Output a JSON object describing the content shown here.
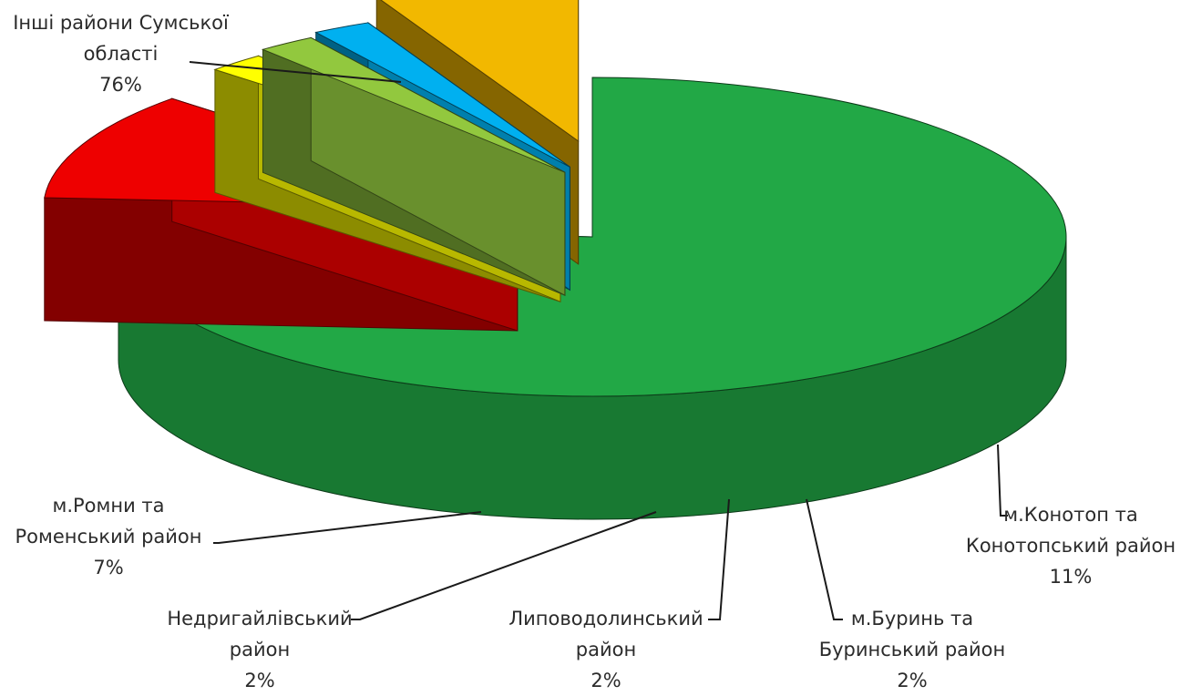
{
  "chart_data": {
    "type": "pie",
    "style": "3d-exploded",
    "slices": [
      {
        "label_lines": [
          "Інші райони Сумської",
          "області"
        ],
        "value_label": "76%",
        "value": 76,
        "color": "#22a846"
      },
      {
        "label_lines": [
          "м.Конотоп та",
          "Конотопський район"
        ],
        "value_label": "11%",
        "value": 11,
        "color": "#ee0000"
      },
      {
        "label_lines": [
          "м.Буринь та",
          "Буринський район"
        ],
        "value_label": "2%",
        "value": 2,
        "color": "#ffff00"
      },
      {
        "label_lines": [
          "Липоводолинський",
          "район"
        ],
        "value_label": "2%",
        "value": 2,
        "color": "#92c83e"
      },
      {
        "label_lines": [
          "Недригайлівський",
          "район"
        ],
        "value_label": "2%",
        "value": 2,
        "color": "#00b0f0"
      },
      {
        "label_lines": [
          "м.Ромни та",
          "Роменський район"
        ],
        "value_label": "7%",
        "value": 7,
        "color": "#f2b800"
      }
    ]
  }
}
